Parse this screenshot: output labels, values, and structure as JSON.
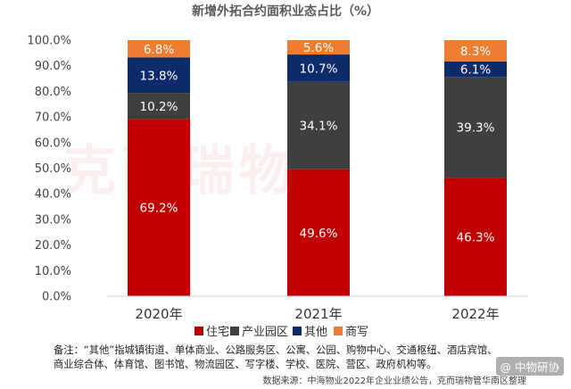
{
  "chart_data": {
    "type": "bar",
    "stacked": true,
    "title": "新增外拓合约面积业态占比（%）",
    "categories": [
      "2020年",
      "2021年",
      "2022年"
    ],
    "ylim": [
      0,
      100
    ],
    "yticks": [
      "0.0%",
      "10.0%",
      "20.0%",
      "30.0%",
      "40.0%",
      "50.0%",
      "60.0%",
      "70.0%",
      "80.0%",
      "90.0%",
      "100.0%"
    ],
    "series": [
      {
        "name": "住宅",
        "color": "#c00000",
        "values": [
          69.2,
          49.6,
          46.3
        ],
        "labels": [
          "69.2%",
          "49.6%",
          "46.3%"
        ]
      },
      {
        "name": "产业园区",
        "color": "#3f3f3f",
        "values": [
          10.2,
          34.1,
          39.3
        ],
        "labels": [
          "10.2%",
          "34.1%",
          "39.3%"
        ]
      },
      {
        "name": "其他",
        "color": "#0d2a6b",
        "values": [
          13.8,
          10.7,
          6.1
        ],
        "labels": [
          "13.8%",
          "10.7%",
          "6.1%"
        ]
      },
      {
        "name": "商写",
        "color": "#ed7d31",
        "values": [
          6.8,
          5.6,
          8.3
        ],
        "labels": [
          "6.8%",
          "5.6%",
          "8.3%"
        ]
      }
    ],
    "grid": false,
    "legend": "bottom"
  },
  "watermark": "克而瑞物管",
  "notes": {
    "line1": "备注：“其他”指城镇街道、单体商业、公路服务区、公寓、公园、购物中心、交通枢纽、酒店宾馆、",
    "line2": "商业综合体、体育馆、图书馆、物流园区、写字楼、学校、医院、营区、政府机构等。",
    "source": "数据来源：中海物业2022年企业业绩公告，克而瑞物管华南区整理",
    "badge": "@ 中物研协"
  }
}
